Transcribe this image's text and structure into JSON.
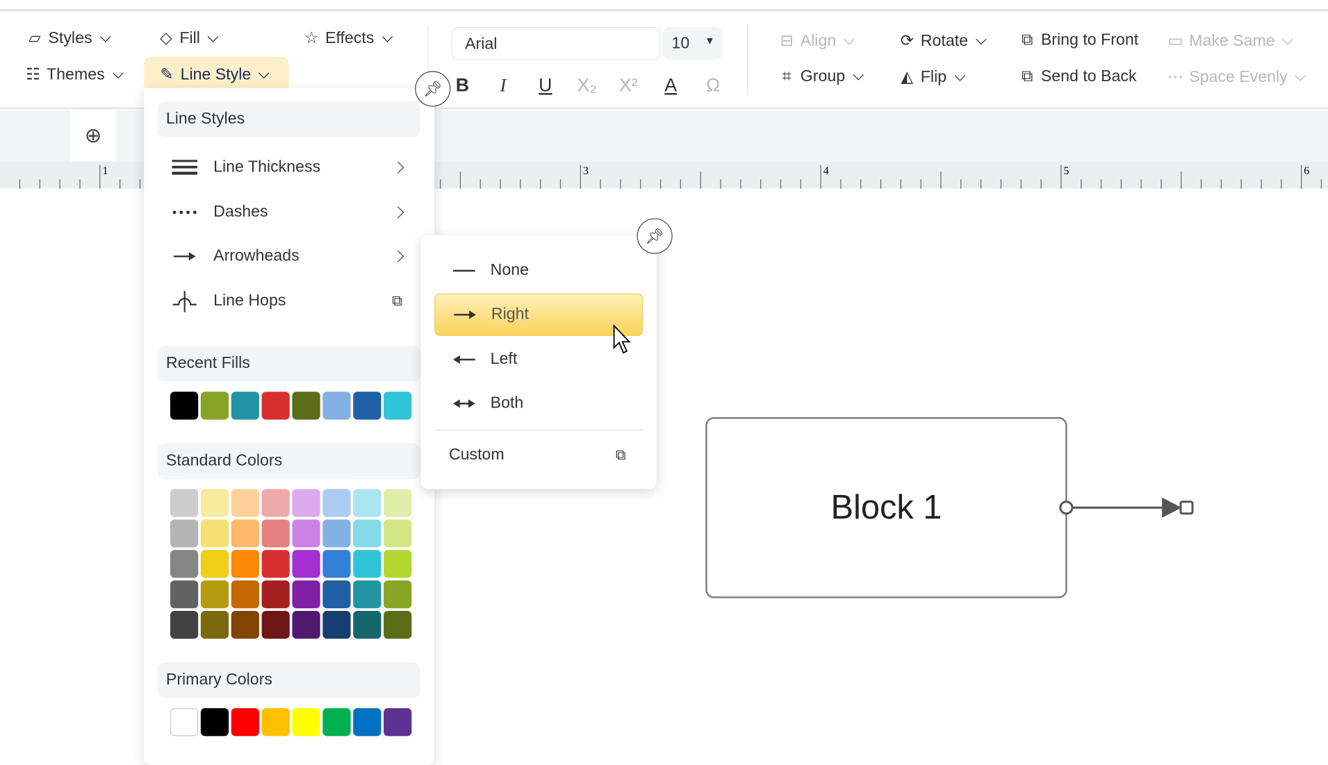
{
  "toolbar": {
    "styles": "Styles",
    "fill": "Fill",
    "effects": "Effects",
    "themes": "Themes",
    "line_style": "Line Style",
    "font": "Arial",
    "font_size": "10",
    "format": {
      "bold": "B",
      "italic": "I",
      "underline": "U",
      "subscript": "X₂",
      "superscript": "X²",
      "font_color": "A",
      "symbol": "Ω"
    },
    "align": "Align",
    "rotate": "Rotate",
    "bring_to_front": "Bring to Front",
    "make_same": "Make Same",
    "group": "Group",
    "flip": "Flip",
    "send_to_back": "Send to Back",
    "space_evenly": "Space Evenly"
  },
  "ruler": {
    "labels": [
      "1",
      "3",
      "4",
      "5",
      "6"
    ]
  },
  "line_menu": {
    "header": "Line Styles",
    "items": [
      {
        "label": "Line Thickness",
        "icon": "line-thickness-icon"
      },
      {
        "label": "Dashes",
        "icon": "dashes-icon"
      },
      {
        "label": "Arrowheads",
        "icon": "arrowheads-icon"
      },
      {
        "label": "Line Hops",
        "icon": "line-hops-icon"
      }
    ],
    "recent_fills_header": "Recent Fills",
    "recent_fills": [
      "#000000",
      "#88a424",
      "#2294a4",
      "#d83030",
      "#5c6c18",
      "#84b0e4",
      "#2060a4",
      "#30c4d8"
    ],
    "standard_colors_header": "Standard Colors",
    "standard_colors": [
      [
        "#cccccc",
        "#f8ea9e",
        "#fdd09a",
        "#eeaaaa",
        "#dcaaee",
        "#aaccf0",
        "#aae6ee",
        "#e0eeaa"
      ],
      [
        "#b4b4b4",
        "#f4e074",
        "#feb86a",
        "#e68080",
        "#cc84e4",
        "#84b0e4",
        "#84dae6",
        "#d4e684"
      ],
      [
        "#868686",
        "#eece18",
        "#fe880a",
        "#d83030",
        "#a430d4",
        "#3080d8",
        "#30c4d8",
        "#b4d630"
      ],
      [
        "#626262",
        "#b49c10",
        "#c46806",
        "#a42020",
        "#8020a4",
        "#2060a4",
        "#2294a4",
        "#88a424"
      ],
      [
        "#424242",
        "#7a6a0c",
        "#844404",
        "#6e1616",
        "#521a6e",
        "#163e6e",
        "#16666e",
        "#5c6c18"
      ]
    ],
    "primary_colors_header": "Primary Colors",
    "primary_colors": [
      "#ffffff",
      "#000000",
      "#ff0000",
      "#ffc000",
      "#ffff00",
      "#00b050",
      "#0070c0",
      "#5c3292"
    ]
  },
  "arrowheads_menu": {
    "items": [
      {
        "label": "None",
        "selected": false
      },
      {
        "label": "Right",
        "selected": true
      },
      {
        "label": "Left",
        "selected": false
      },
      {
        "label": "Both",
        "selected": false
      }
    ],
    "custom": "Custom"
  },
  "canvas": {
    "block_label": "Block 1"
  },
  "colors": {
    "accent_highlight": "#fdf0c8",
    "selected_item": "#fbd45c"
  }
}
